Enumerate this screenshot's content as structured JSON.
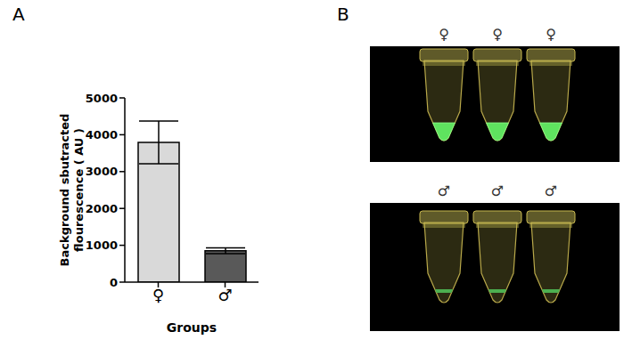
{
  "chart_data": {
    "type": "bar",
    "categories": [
      "♀",
      "♂"
    ],
    "values": [
      3790,
      850
    ],
    "errors": [
      580,
      80
    ],
    "colors": [
      "#d9d9d9",
      "#595959"
    ],
    "xlabel": "Groups",
    "ylabel": "Background sbutracted flourescence ( AU )",
    "ylim": [
      0,
      5000
    ],
    "yticks": [
      0,
      1000,
      2000,
      3000,
      4000,
      5000
    ],
    "grid": false
  },
  "panel_labels": [
    "A",
    "B"
  ],
  "photo": {
    "rows": [
      [
        "♀",
        "♀",
        "♀"
      ],
      [
        "♂",
        "♂",
        "♂"
      ]
    ]
  }
}
